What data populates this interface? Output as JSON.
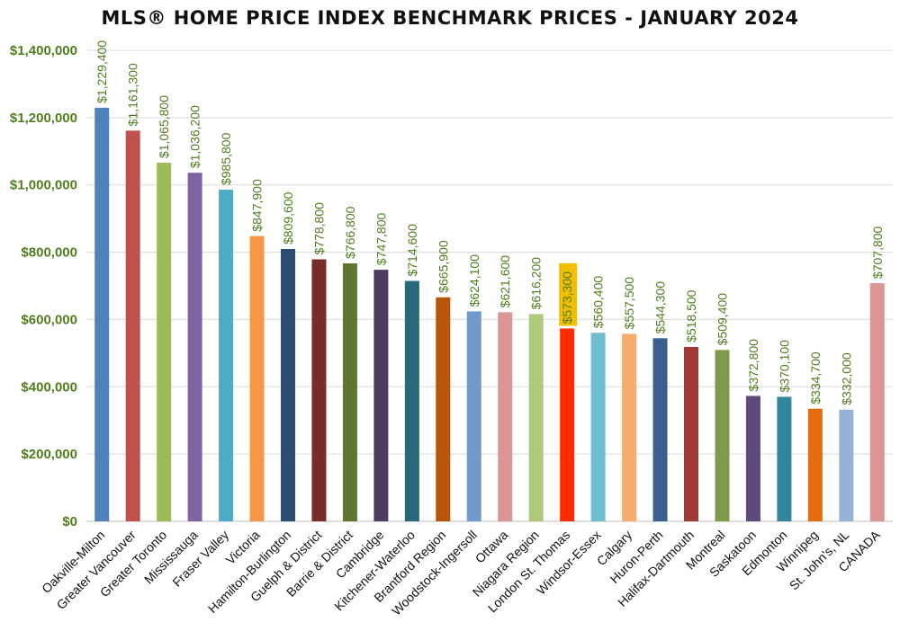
{
  "chart_data": {
    "type": "bar",
    "title": "MLS® HOME PRICE INDEX BENCHMARK PRICES - JANUARY 2024",
    "xlabel": "",
    "ylabel": "",
    "ylim": [
      0,
      1400000
    ],
    "y_ticks": [
      0,
      200000,
      400000,
      600000,
      800000,
      1000000,
      1200000,
      1400000
    ],
    "y_tick_labels": [
      "$0",
      "$200,000",
      "$400,000",
      "$600,000",
      "$800,000",
      "$1,000,000",
      "$1,200,000",
      "$1,400,000"
    ],
    "grid": true,
    "legend": "none",
    "categories": [
      "Oakville-Milton",
      "Greater Vancouver",
      "Greater Toronto",
      "Mississauga",
      "Fraser Valley",
      "Victoria",
      "Hamilton-Burlington",
      "Guelph & District",
      "Barrie & District",
      "Cambridge",
      "Kitchener-Waterloo",
      "Brantford Region",
      "Woodstock-Ingersoll",
      "Ottawa",
      "Niagara Region",
      "London St. Thomas",
      "Windsor-Essex",
      "Calgary",
      "Huron-Perth",
      "Halifax-Dartmouth",
      "Montreal",
      "Saskatoon",
      "Edmonton",
      "Winnipeg",
      "St. John's, NL",
      "CANADA"
    ],
    "values": [
      1229400,
      1161300,
      1065800,
      1036200,
      985800,
      847900,
      809600,
      778800,
      766800,
      747800,
      714600,
      665900,
      624100,
      621600,
      616200,
      573300,
      560400,
      557500,
      544300,
      518500,
      509400,
      372800,
      370100,
      334700,
      332000,
      707800
    ],
    "data_labels": [
      "$1,229,400",
      "$1,161,300",
      "$1,065,800",
      "$1,036,200",
      "$985,800",
      "$847,900",
      "$809,600",
      "$778,800",
      "$766,800",
      "$747,800",
      "$714,600",
      "$665,900",
      "$624,100",
      "$621,600",
      "$616,200",
      "$573,300",
      "$560,400",
      "$557,500",
      "$544,300",
      "$518,500",
      "$509,400",
      "$372,800",
      "$370,100",
      "$334,700",
      "$332,000",
      "$707,800"
    ],
    "bar_colors": [
      "#4F81BD",
      "#C0504D",
      "#9BBB59",
      "#8064A2",
      "#4BACC6",
      "#F79646",
      "#2C4D75",
      "#772C2A",
      "#5F7530",
      "#4D3B62",
      "#276A7C",
      "#B65708",
      "#729ACA",
      "#D99694",
      "#AFC97A",
      "#FF2D00",
      "#6FBDD1",
      "#F9AB6B",
      "#3A5F8E",
      "#9E3A38",
      "#7F9A48",
      "#604A7B",
      "#31859C",
      "#E46C0A",
      "#95B3D7",
      "#D99694"
    ],
    "label_color": "#4F7D1C",
    "highlight": {
      "category": "London St. Thomas",
      "label_background": "#F2BE00"
    }
  }
}
